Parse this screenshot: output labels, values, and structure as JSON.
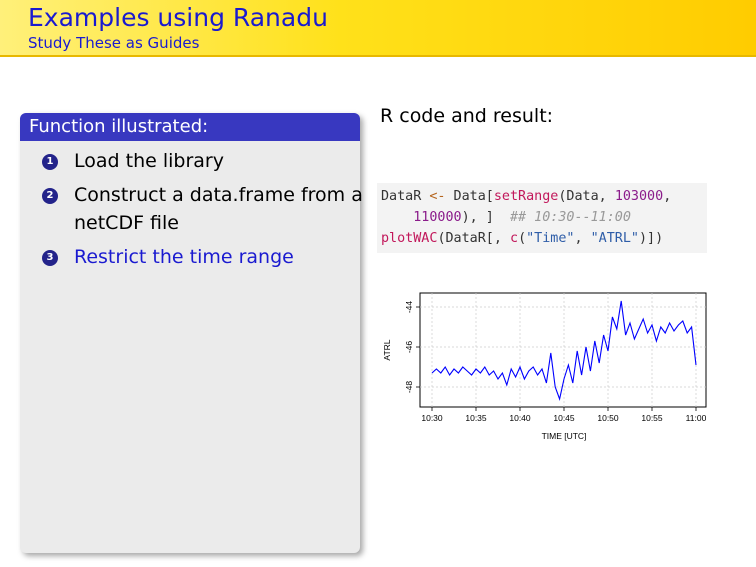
{
  "header": {
    "title": "Examples using Ranadu",
    "subtitle": "Study These as Guides"
  },
  "left_panel": {
    "heading": "Function illustrated:",
    "items": [
      {
        "num": "1",
        "text": "Load the library"
      },
      {
        "num": "2",
        "text": "Construct a data.frame from a netCDF file"
      },
      {
        "num": "3",
        "text": "Restrict the time range"
      }
    ]
  },
  "right": {
    "title": "R code and result:",
    "code": {
      "l1_a": "DataR ",
      "l1_op": "<-",
      "l1_b": " Data[",
      "l1_fn": "setRange",
      "l1_c": "(Data, ",
      "l1_n": "103000",
      "l1_d": ",",
      "l2_pad": "    ",
      "l2_n": "110000",
      "l2_a": "), ]  ",
      "l2_cm": "## 10:30--11:00",
      "l3_fn": "plotWAC",
      "l3_a": "(DataR[, ",
      "l3_c": "c",
      "l3_b": "(",
      "l3_s1": "\"Time\"",
      "l3_sep": ", ",
      "l3_s2": "\"ATRL\"",
      "l3_end": ")])"
    }
  },
  "chart_data": {
    "type": "line",
    "xlabel": "TIME [UTC]",
    "ylabel": "ATRL",
    "x_ticks": [
      "10:30",
      "10:35",
      "10:40",
      "10:45",
      "10:50",
      "10:55",
      "11:00"
    ],
    "y_ticks": [
      -48,
      -46,
      -44
    ],
    "ylim": [
      -49,
      -43.3
    ],
    "xlim_minutes": [
      0,
      30
    ],
    "series": [
      {
        "color": "#0000ff",
        "x": [
          0,
          0.5,
          1,
          1.5,
          2,
          2.5,
          3,
          3.5,
          4,
          4.5,
          5,
          5.5,
          6,
          6.5,
          7,
          7.5,
          8,
          8.5,
          9,
          9.5,
          10,
          10.5,
          11,
          11.5,
          12,
          12.5,
          13,
          13.5,
          14,
          14.5,
          15,
          15.5,
          16,
          16.5,
          17,
          17.5,
          18,
          18.5,
          19,
          19.5,
          20,
          20.5,
          21,
          21.5,
          22,
          22.5,
          23,
          23.5,
          24,
          24.5,
          25,
          25.5,
          26,
          26.5,
          27,
          27.5,
          28,
          28.5,
          29,
          29.5,
          30
        ],
        "y": [
          -47.3,
          -47.1,
          -47.3,
          -47.0,
          -47.4,
          -47.1,
          -47.3,
          -47.0,
          -47.2,
          -47.4,
          -47.1,
          -47.3,
          -47.0,
          -47.4,
          -47.2,
          -47.6,
          -47.3,
          -47.9,
          -47.1,
          -47.5,
          -47.0,
          -47.6,
          -47.2,
          -47.0,
          -47.4,
          -47.1,
          -47.8,
          -46.3,
          -48.0,
          -48.6,
          -47.6,
          -46.9,
          -47.8,
          -46.2,
          -47.4,
          -46.0,
          -47.2,
          -45.7,
          -46.8,
          -45.4,
          -46.2,
          -44.5,
          -45.1,
          -43.7,
          -45.4,
          -44.8,
          -45.6,
          -45.1,
          -44.6,
          -45.3,
          -44.9,
          -45.7,
          -45.0,
          -45.3,
          -44.8,
          -45.2,
          -44.9,
          -44.7,
          -45.3,
          -45.0,
          -46.9
        ]
      }
    ]
  }
}
